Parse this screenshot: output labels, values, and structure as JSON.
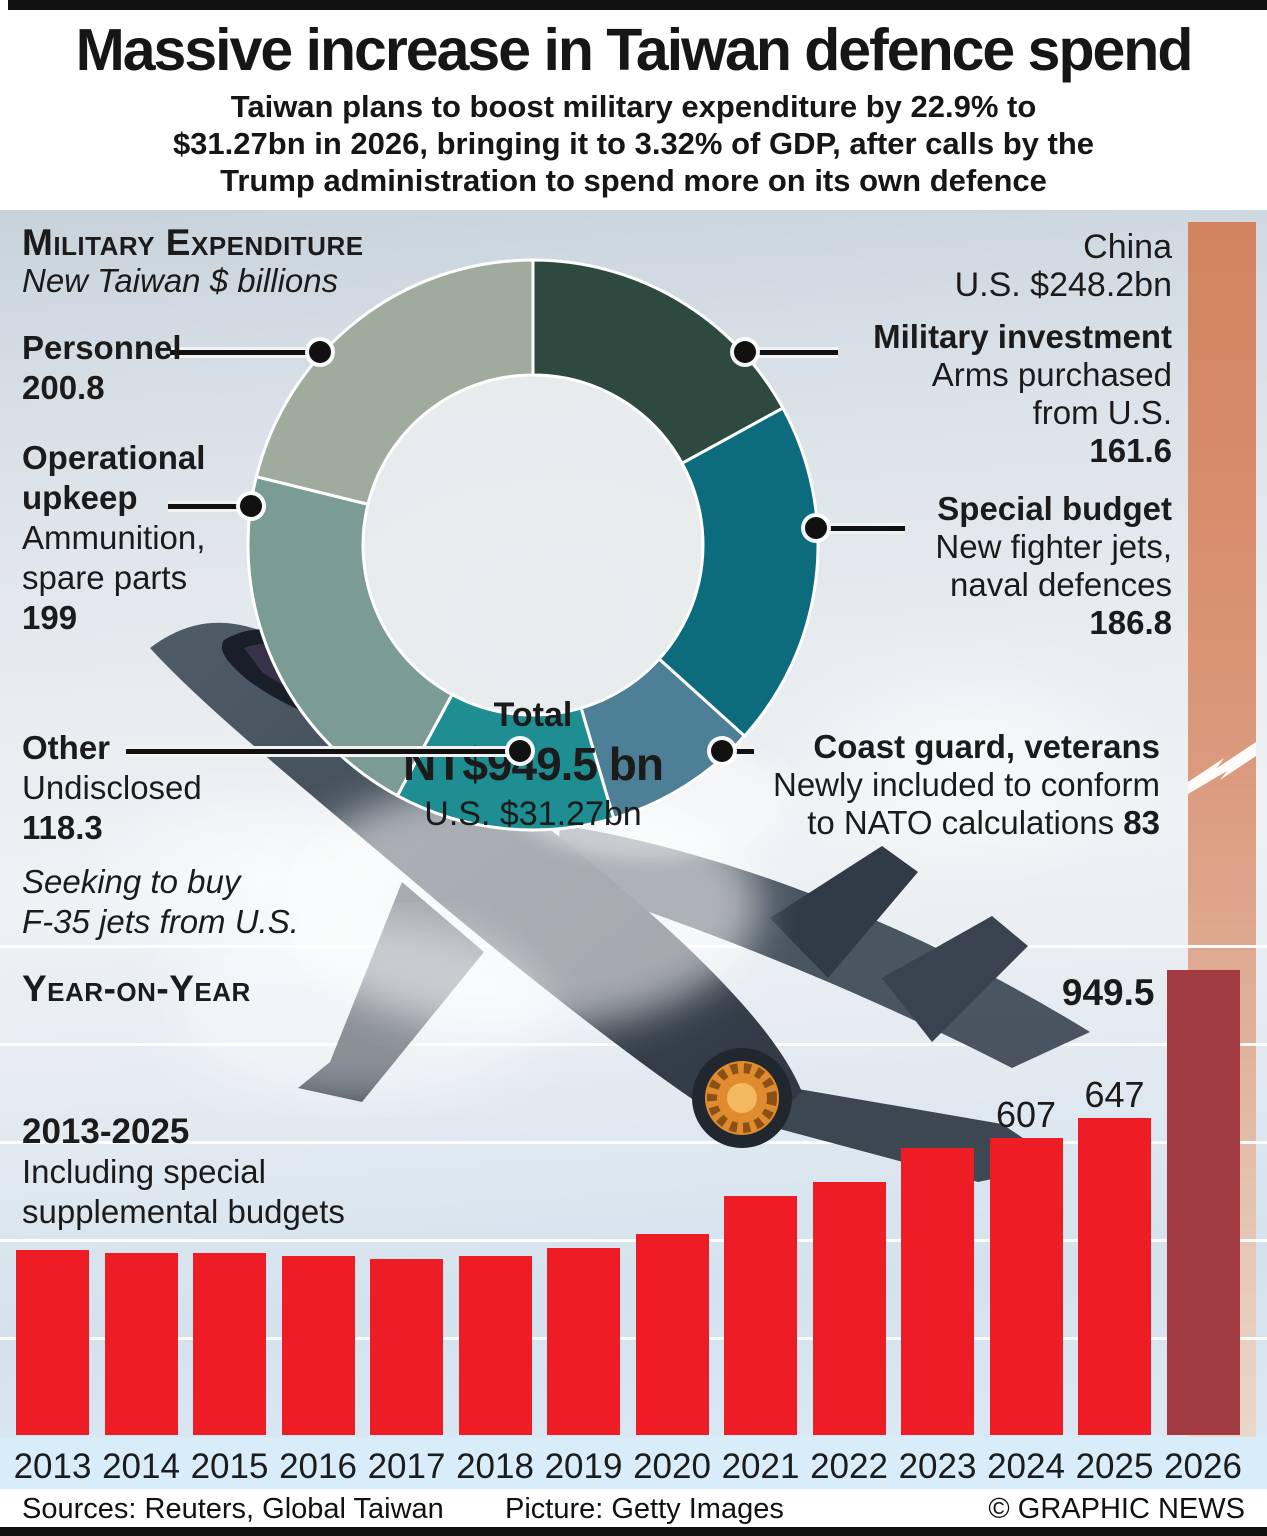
{
  "header": {
    "title": "Massive increase in Taiwan defence spend",
    "subtitle_line1": "Taiwan plans to boost military expenditure by 22.9% to",
    "subtitle_line2": "$31.27bn in 2026, bringing it to 3.32% of GDP, after calls by the",
    "subtitle_line3": "Trump administration to spend more on its own defence"
  },
  "donut_section": {
    "heading": "Military Expenditure",
    "subheading": "New Taiwan $ billions",
    "center": {
      "label": "Total",
      "nt": "NT$949.5 bn",
      "usd": "U.S. $31.27bn"
    },
    "personnel": {
      "title": "Personnel",
      "value": "200.8"
    },
    "operational": {
      "title1": "Operational",
      "title2": "upkeep",
      "desc1": "Ammunition,",
      "desc2": "spare parts",
      "value": "199"
    },
    "other": {
      "title": "Other",
      "desc": "Undisclosed",
      "value": "118.3"
    },
    "military_investment": {
      "title": "Military investment",
      "desc1": "Arms purchased",
      "desc2": "from U.S.",
      "value": "161.6"
    },
    "special_budget": {
      "title": "Special budget",
      "desc1": "New fighter jets,",
      "desc2": "naval defences",
      "value": "186.8"
    },
    "coast_guard": {
      "title": "Coast guard, veterans",
      "desc1": "Newly included to conform",
      "desc2": "to NATO calculations",
      "value": "83"
    },
    "china": {
      "line1": "China",
      "line2": "U.S. $248.2bn"
    }
  },
  "yoy_section": {
    "heading": "Year-on-Year",
    "italic_note1": "Seeking to buy",
    "italic_note2": "F-35 jets from U.S.",
    "range_title": "2013-2025",
    "range_desc1": "Including special",
    "range_desc2": "supplemental budgets"
  },
  "footer": {
    "sources": "Sources: Reuters, Global Taiwan",
    "picture": "Picture: Getty Images",
    "credit": "© GRAPHIC NEWS"
  },
  "chart_data": [
    {
      "type": "pie",
      "subtype": "donut",
      "title": "Military Expenditure",
      "subtitle": "New Taiwan $ billions",
      "total_label": "Total NT$949.5 bn (U.S. $31.27bn)",
      "start_angle_deg": 0,
      "direction": "clockwise",
      "segments": [
        {
          "label": "Military investment",
          "value": 161.6,
          "color": "#2e4a40"
        },
        {
          "label": "Special budget",
          "value": 186.8,
          "color": "#0c6c7e"
        },
        {
          "label": "Coast guard, veterans",
          "value": 83,
          "color": "#4d7f97"
        },
        {
          "label": "Other",
          "value": 118.3,
          "color": "#1e8e92"
        },
        {
          "label": "Operational upkeep",
          "value": 199,
          "color": "#7b9c94"
        },
        {
          "label": "Personnel",
          "value": 200.8,
          "color": "#9fab9d"
        }
      ]
    },
    {
      "type": "bar",
      "title": "Year-on-Year",
      "ylabel": "New Taiwan $ billions",
      "categories": [
        "2013",
        "2014",
        "2015",
        "2016",
        "2017",
        "2018",
        "2019",
        "2020",
        "2021",
        "2022",
        "2023",
        "2024",
        "2025",
        "2026"
      ],
      "values": [
        378,
        372,
        372,
        366,
        360,
        366,
        381,
        411,
        489,
        516,
        586,
        607,
        647,
        949.5
      ],
      "value_labels": {
        "2024": "607",
        "2025": "647",
        "2026": "949.5"
      },
      "bar_color": "#ee1c25",
      "highlight_category": "2026",
      "highlight_color": "#a23a42",
      "ylim": [
        0,
        1000
      ],
      "grid_step": 200,
      "grid": true,
      "comparison_bar": {
        "label": "China U.S. $248.2bn",
        "color": "#d5825f",
        "broken": true
      }
    }
  ]
}
